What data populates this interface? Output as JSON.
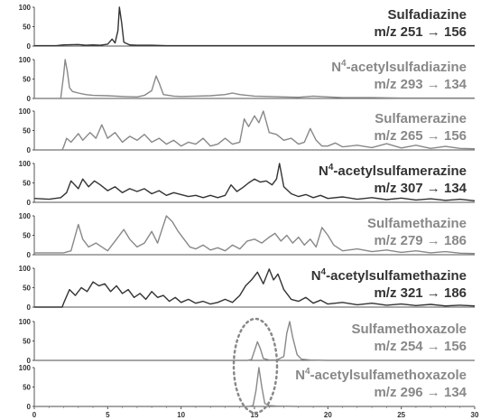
{
  "chart_data": {
    "type": "line",
    "x_axis": {
      "range": [
        0,
        30
      ],
      "tick_labels": [
        "0",
        "5",
        "10",
        "15",
        "20",
        "25",
        "30"
      ]
    },
    "y_axis": {
      "range": [
        0,
        100
      ],
      "tick_labels": [
        "100",
        "50",
        "0"
      ]
    },
    "highlight": {
      "shape": "dotted-ellipse",
      "x_center": 15.0,
      "panels": [
        7,
        8
      ],
      "color": "#888888"
    },
    "panels": [
      {
        "compound": "Sulfadiazine",
        "transition": "m/z 251 → 156",
        "color": "#333333",
        "points": [
          [
            0,
            1
          ],
          [
            1.5,
            1
          ],
          [
            2,
            3
          ],
          [
            3,
            4
          ],
          [
            3.5,
            2
          ],
          [
            4,
            3
          ],
          [
            4.5,
            2
          ],
          [
            5,
            5
          ],
          [
            5.3,
            18
          ],
          [
            5.5,
            8
          ],
          [
            5.7,
            40
          ],
          [
            5.8,
            100
          ],
          [
            5.95,
            60
          ],
          [
            6.1,
            10
          ],
          [
            6.5,
            3
          ],
          [
            7,
            2
          ],
          [
            8,
            2
          ],
          [
            9,
            1
          ],
          [
            10,
            1
          ],
          [
            12,
            1
          ],
          [
            14,
            1
          ],
          [
            16,
            1
          ],
          [
            18,
            1
          ],
          [
            20,
            1
          ],
          [
            25,
            1
          ],
          [
            30,
            1
          ]
        ]
      },
      {
        "compound": "N4-acetylsulfadiazine",
        "transition": "m/z 293 → 134",
        "color": "#888888",
        "points": [
          [
            0,
            0
          ],
          [
            1.8,
            0
          ],
          [
            2.0,
            60
          ],
          [
            2.1,
            100
          ],
          [
            2.25,
            70
          ],
          [
            2.4,
            28
          ],
          [
            2.6,
            18
          ],
          [
            3,
            14
          ],
          [
            3.5,
            10
          ],
          [
            4,
            8
          ],
          [
            5,
            7
          ],
          [
            6,
            5
          ],
          [
            7,
            4
          ],
          [
            7.5,
            8
          ],
          [
            8,
            20
          ],
          [
            8.3,
            58
          ],
          [
            8.5,
            40
          ],
          [
            8.8,
            10
          ],
          [
            9.5,
            6
          ],
          [
            10,
            5
          ],
          [
            11,
            6
          ],
          [
            12,
            7
          ],
          [
            13,
            10
          ],
          [
            13.5,
            14
          ],
          [
            14,
            10
          ],
          [
            15,
            6
          ],
          [
            16,
            5
          ],
          [
            17,
            4
          ],
          [
            18,
            3
          ],
          [
            19,
            6
          ],
          [
            20,
            4
          ],
          [
            21,
            2
          ],
          [
            23,
            2
          ],
          [
            25,
            1
          ],
          [
            28,
            1
          ],
          [
            30,
            1
          ]
        ]
      },
      {
        "compound": "Sulfamerazine",
        "transition": "m/z 265 → 156",
        "color": "#888888",
        "points": [
          [
            0,
            0
          ],
          [
            1.9,
            0
          ],
          [
            2,
            8
          ],
          [
            2.2,
            30
          ],
          [
            2.5,
            20
          ],
          [
            3,
            42
          ],
          [
            3.3,
            25
          ],
          [
            3.8,
            45
          ],
          [
            4.2,
            30
          ],
          [
            4.6,
            65
          ],
          [
            5,
            30
          ],
          [
            5.5,
            45
          ],
          [
            6,
            20
          ],
          [
            6.5,
            35
          ],
          [
            7,
            25
          ],
          [
            7.5,
            40
          ],
          [
            8,
            20
          ],
          [
            8.5,
            30
          ],
          [
            9,
            15
          ],
          [
            9.5,
            25
          ],
          [
            10,
            10
          ],
          [
            10.5,
            20
          ],
          [
            11,
            15
          ],
          [
            11.5,
            30
          ],
          [
            12,
            10
          ],
          [
            12.5,
            15
          ],
          [
            13,
            30
          ],
          [
            13.5,
            15
          ],
          [
            14,
            20
          ],
          [
            14.3,
            80
          ],
          [
            14.6,
            60
          ],
          [
            15,
            88
          ],
          [
            15.3,
            70
          ],
          [
            15.6,
            100
          ],
          [
            16,
            45
          ],
          [
            16.5,
            40
          ],
          [
            17,
            25
          ],
          [
            17.5,
            30
          ],
          [
            18,
            15
          ],
          [
            18.4,
            20
          ],
          [
            18.8,
            55
          ],
          [
            19.2,
            25
          ],
          [
            19.6,
            10
          ],
          [
            20,
            10
          ],
          [
            20.5,
            18
          ],
          [
            21,
            8
          ],
          [
            22,
            12
          ],
          [
            23,
            6
          ],
          [
            24,
            16
          ],
          [
            25,
            5
          ],
          [
            26,
            12
          ],
          [
            27,
            4
          ],
          [
            28,
            9
          ],
          [
            29,
            4
          ],
          [
            30,
            3
          ]
        ]
      },
      {
        "compound": "N4-acetylsulfamerazine",
        "transition": "m/z 307 → 134",
        "color": "#333333",
        "points": [
          [
            0,
            10
          ],
          [
            1,
            8
          ],
          [
            1.8,
            12
          ],
          [
            2.2,
            25
          ],
          [
            2.5,
            55
          ],
          [
            3,
            35
          ],
          [
            3.3,
            60
          ],
          [
            3.7,
            40
          ],
          [
            4.1,
            55
          ],
          [
            4.5,
            45
          ],
          [
            5,
            30
          ],
          [
            5.5,
            40
          ],
          [
            6,
            25
          ],
          [
            6.5,
            35
          ],
          [
            7,
            28
          ],
          [
            7.5,
            35
          ],
          [
            8,
            22
          ],
          [
            8.5,
            30
          ],
          [
            9,
            18
          ],
          [
            9.5,
            25
          ],
          [
            10,
            20
          ],
          [
            10.5,
            15
          ],
          [
            11,
            18
          ],
          [
            11.5,
            12
          ],
          [
            12,
            18
          ],
          [
            12.5,
            12
          ],
          [
            13,
            18
          ],
          [
            13.4,
            45
          ],
          [
            13.8,
            28
          ],
          [
            14.2,
            38
          ],
          [
            14.6,
            50
          ],
          [
            15,
            60
          ],
          [
            15.4,
            52
          ],
          [
            15.8,
            55
          ],
          [
            16.2,
            45
          ],
          [
            16.5,
            60
          ],
          [
            16.7,
            100
          ],
          [
            17,
            40
          ],
          [
            17.5,
            22
          ],
          [
            18,
            15
          ],
          [
            18.5,
            20
          ],
          [
            19,
            12
          ],
          [
            19.5,
            18
          ],
          [
            20,
            10
          ],
          [
            21,
            14
          ],
          [
            22,
            8
          ],
          [
            23,
            12
          ],
          [
            24,
            7
          ],
          [
            25,
            11
          ],
          [
            26,
            6
          ],
          [
            27,
            9
          ],
          [
            28,
            5
          ],
          [
            29,
            8
          ],
          [
            30,
            4
          ]
        ]
      },
      {
        "compound": "Sulfamethazine",
        "transition": "m/z 279 → 186",
        "color": "#888888",
        "points": [
          [
            0,
            5
          ],
          [
            2,
            5
          ],
          [
            2.5,
            10
          ],
          [
            3,
            78
          ],
          [
            3.3,
            40
          ],
          [
            3.7,
            20
          ],
          [
            4.2,
            30
          ],
          [
            5,
            10
          ],
          [
            5.6,
            40
          ],
          [
            6.1,
            65
          ],
          [
            6.5,
            40
          ],
          [
            7,
            20
          ],
          [
            7.5,
            30
          ],
          [
            8,
            60
          ],
          [
            8.4,
            30
          ],
          [
            9,
            100
          ],
          [
            9.4,
            85
          ],
          [
            9.8,
            60
          ],
          [
            10.2,
            40
          ],
          [
            10.6,
            20
          ],
          [
            11,
            15
          ],
          [
            11.5,
            25
          ],
          [
            12,
            12
          ],
          [
            12.5,
            18
          ],
          [
            13,
            10
          ],
          [
            13.5,
            25
          ],
          [
            14,
            15
          ],
          [
            14.5,
            35
          ],
          [
            15,
            40
          ],
          [
            15.5,
            30
          ],
          [
            16,
            45
          ],
          [
            16.4,
            55
          ],
          [
            16.8,
            35
          ],
          [
            17.2,
            50
          ],
          [
            17.6,
            30
          ],
          [
            18,
            45
          ],
          [
            18.4,
            25
          ],
          [
            18.8,
            40
          ],
          [
            19.2,
            20
          ],
          [
            19.6,
            70
          ],
          [
            20,
            50
          ],
          [
            20.4,
            25
          ],
          [
            21,
            10
          ],
          [
            22,
            15
          ],
          [
            23,
            8
          ],
          [
            24,
            12
          ],
          [
            25,
            6
          ],
          [
            26,
            10
          ],
          [
            27,
            5
          ],
          [
            28,
            8
          ],
          [
            29,
            4
          ],
          [
            30,
            3
          ]
        ]
      },
      {
        "compound": "N4-acetylsulfamethazine",
        "transition": "m/z 321 → 186",
        "color": "#333333",
        "points": [
          [
            0,
            0
          ],
          [
            1.9,
            0
          ],
          [
            2,
            10
          ],
          [
            2.4,
            45
          ],
          [
            2.8,
            30
          ],
          [
            3.2,
            50
          ],
          [
            3.6,
            40
          ],
          [
            4,
            65
          ],
          [
            4.4,
            55
          ],
          [
            4.8,
            60
          ],
          [
            5.2,
            40
          ],
          [
            5.6,
            55
          ],
          [
            6,
            35
          ],
          [
            6.4,
            45
          ],
          [
            6.8,
            25
          ],
          [
            7.2,
            35
          ],
          [
            7.6,
            20
          ],
          [
            8,
            40
          ],
          [
            8.4,
            25
          ],
          [
            8.8,
            30
          ],
          [
            9.2,
            15
          ],
          [
            9.6,
            25
          ],
          [
            10,
            12
          ],
          [
            10.5,
            20
          ],
          [
            11,
            10
          ],
          [
            11.5,
            15
          ],
          [
            12,
            8
          ],
          [
            12.5,
            12
          ],
          [
            13,
            20
          ],
          [
            13.5,
            12
          ],
          [
            14,
            30
          ],
          [
            14.4,
            55
          ],
          [
            14.8,
            70
          ],
          [
            15.2,
            90
          ],
          [
            15.6,
            60
          ],
          [
            16,
            98
          ],
          [
            16.3,
            70
          ],
          [
            16.6,
            85
          ],
          [
            17,
            45
          ],
          [
            17.5,
            20
          ],
          [
            18,
            15
          ],
          [
            18.5,
            25
          ],
          [
            19,
            10
          ],
          [
            19.5,
            18
          ],
          [
            20,
            8
          ],
          [
            21,
            12
          ],
          [
            22,
            6
          ],
          [
            23,
            10
          ],
          [
            24,
            5
          ],
          [
            25,
            8
          ],
          [
            26,
            4
          ],
          [
            27,
            7
          ],
          [
            28,
            3
          ],
          [
            29,
            5
          ],
          [
            30,
            3
          ]
        ]
      },
      {
        "compound": "Sulfamethoxazole",
        "transition": "m/z 254 → 156",
        "color": "#888888",
        "points": [
          [
            0,
            0
          ],
          [
            14.5,
            0
          ],
          [
            14.8,
            2
          ],
          [
            15.0,
            25
          ],
          [
            15.2,
            48
          ],
          [
            15.4,
            30
          ],
          [
            15.6,
            5
          ],
          [
            16,
            1
          ],
          [
            16.5,
            1
          ],
          [
            17,
            10
          ],
          [
            17.2,
            70
          ],
          [
            17.4,
            100
          ],
          [
            17.6,
            60
          ],
          [
            17.9,
            15
          ],
          [
            18.2,
            3
          ],
          [
            18.8,
            1
          ],
          [
            20,
            0
          ],
          [
            22,
            0
          ],
          [
            25,
            0
          ],
          [
            30,
            0
          ]
        ]
      },
      {
        "compound": "N4-acetylsulfamethoxazole",
        "transition": "m/z 296 → 134",
        "color": "#888888",
        "points": [
          [
            0,
            0
          ],
          [
            14.6,
            0
          ],
          [
            14.9,
            2
          ],
          [
            15.1,
            40
          ],
          [
            15.3,
            100
          ],
          [
            15.5,
            50
          ],
          [
            15.7,
            8
          ],
          [
            16,
            2
          ],
          [
            16.5,
            1
          ],
          [
            18,
            0
          ],
          [
            20,
            0
          ],
          [
            25,
            0
          ],
          [
            30,
            0
          ]
        ]
      }
    ]
  }
}
